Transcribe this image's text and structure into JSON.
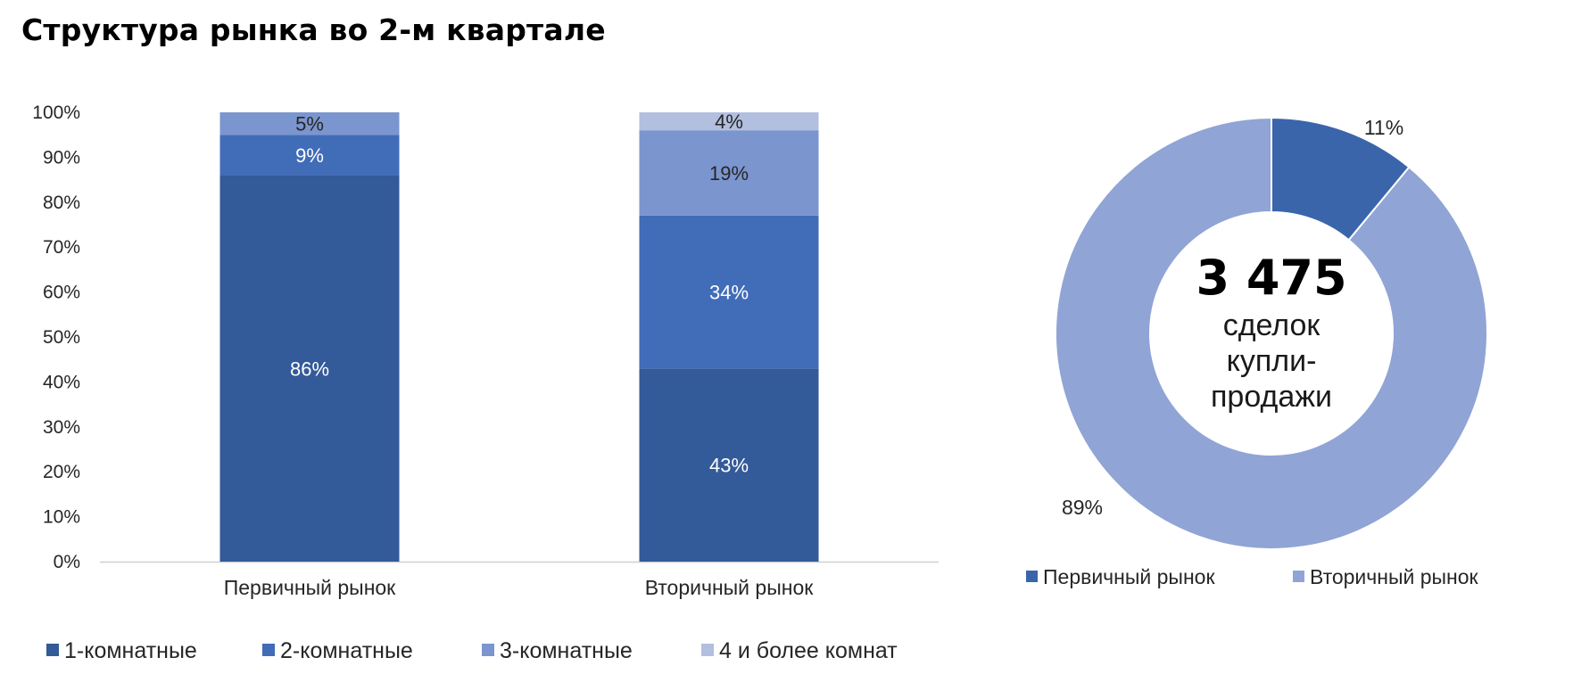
{
  "title": "Структура рынка во 2-м квартале",
  "chart_data": [
    {
      "type": "bar",
      "stacked": true,
      "categories": [
        "Первичный рынок",
        "Вторичный рынок"
      ],
      "series": [
        {
          "name": "1-комнатные",
          "values": [
            86,
            43
          ],
          "color": "#335a99"
        },
        {
          "name": "2-комнатные",
          "values": [
            9,
            34
          ],
          "color": "#416cb8"
        },
        {
          "name": "3-комнатные",
          "values": [
            5,
            19
          ],
          "color": "#7b95cf"
        },
        {
          "name": "4 и более комнат",
          "values": [
            0,
            4
          ],
          "color": "#b3bfdf"
        }
      ],
      "data_labels": [
        [
          "86%",
          "9%",
          "5%",
          ""
        ],
        [
          "43%",
          "34%",
          "19%",
          "4%"
        ]
      ],
      "label_colors": [
        "#ffffff",
        "#ffffff",
        "#262626",
        "#262626"
      ],
      "ylim": [
        0,
        100
      ],
      "yticks": [
        "0%",
        "10%",
        "20%",
        "30%",
        "40%",
        "50%",
        "60%",
        "70%",
        "80%",
        "90%",
        "100%"
      ],
      "legend": "bottom",
      "grid": false
    },
    {
      "type": "pie",
      "donut": true,
      "slices": [
        {
          "name": "Первичный рынок",
          "value": 11,
          "label": "11%",
          "color": "#3a65ab"
        },
        {
          "name": "Вторичный рынок",
          "value": 89,
          "label": "89%",
          "color": "#90a4d5"
        }
      ],
      "center_value": "3 475",
      "center_text": [
        "сделок",
        "купли-",
        "продажи"
      ],
      "legend": "bottom"
    }
  ]
}
